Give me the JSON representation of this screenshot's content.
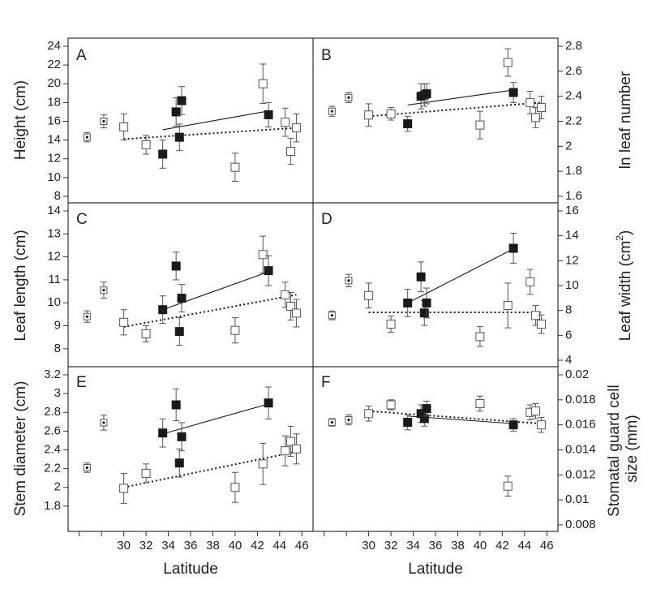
{
  "chart_data": [
    {
      "type": "scatter",
      "panel": "A",
      "ylabel": "Height (cm)",
      "xlabel": "",
      "axis_side": "left",
      "ylim": [
        8,
        24
      ],
      "yticks": [
        8,
        10,
        12,
        14,
        16,
        18,
        20,
        22,
        24
      ],
      "series": [
        {
          "marker": "open",
          "points": [
            {
              "x": 30,
              "y": 15.4,
              "err": 1.4
            },
            {
              "x": 32,
              "y": 13.5,
              "err": 1.0
            },
            {
              "x": 40,
              "y": 11.1,
              "err": 1.5
            },
            {
              "x": 42.5,
              "y": 20.0,
              "err": 2.1
            },
            {
              "x": 44.5,
              "y": 15.9,
              "err": 1.5
            },
            {
              "x": 45,
              "y": 12.8,
              "err": 1.4
            },
            {
              "x": 45.5,
              "y": 15.3,
              "err": 1.5
            }
          ]
        },
        {
          "marker": "filled",
          "points": [
            {
              "x": 33.5,
              "y": 12.5,
              "err": 1.5
            },
            {
              "x": 34.7,
              "y": 17.0,
              "err": 1.5
            },
            {
              "x": 35,
              "y": 14.3,
              "err": 1.4
            },
            {
              "x": 35.2,
              "y": 18.2,
              "err": 1.5
            },
            {
              "x": 43,
              "y": 16.7,
              "err": 1.3
            }
          ]
        },
        {
          "marker": "open-dot",
          "points": [
            {
              "x": 26.7,
              "y": 14.3,
              "err": 0.5
            },
            {
              "x": 28.2,
              "y": 16.0,
              "err": 0.7
            }
          ]
        }
      ],
      "fits": [
        {
          "style": "dotted",
          "x": [
            30,
            45.5
          ],
          "y": [
            14.1,
            15.3
          ]
        },
        {
          "style": "solid",
          "x": [
            33.5,
            43
          ],
          "y": [
            15.1,
            17.1
          ]
        }
      ]
    },
    {
      "type": "scatter",
      "panel": "B",
      "ylabel": "ln leaf number",
      "xlabel": "",
      "axis_side": "right",
      "ylim": [
        1.6,
        2.8
      ],
      "yticks": [
        1.6,
        1.8,
        2.0,
        2.2,
        2.4,
        2.6,
        2.8
      ],
      "series": [
        {
          "marker": "open",
          "points": [
            {
              "x": 30,
              "y": 2.25,
              "err": 0.09
            },
            {
              "x": 32,
              "y": 2.26,
              "err": 0.05
            },
            {
              "x": 40,
              "y": 2.17,
              "err": 0.11
            },
            {
              "x": 42.5,
              "y": 2.67,
              "err": 0.11
            },
            {
              "x": 44.5,
              "y": 2.35,
              "err": 0.09
            },
            {
              "x": 45,
              "y": 2.23,
              "err": 0.08
            },
            {
              "x": 45.5,
              "y": 2.31,
              "err": 0.09
            }
          ]
        },
        {
          "marker": "filled",
          "points": [
            {
              "x": 33.5,
              "y": 2.18,
              "err": 0.06
            },
            {
              "x": 34.7,
              "y": 2.4,
              "err": 0.1
            },
            {
              "x": 35,
              "y": 2.41,
              "err": 0.09
            },
            {
              "x": 35.2,
              "y": 2.42,
              "err": 0.08
            },
            {
              "x": 43,
              "y": 2.43,
              "err": 0.08
            }
          ]
        },
        {
          "marker": "open-dot",
          "points": [
            {
              "x": 26.7,
              "y": 2.28,
              "err": 0.04
            },
            {
              "x": 28.2,
              "y": 2.39,
              "err": 0.04
            }
          ]
        }
      ],
      "fits": [
        {
          "style": "dotted",
          "x": [
            30,
            45.5
          ],
          "y": [
            2.24,
            2.35
          ]
        },
        {
          "style": "solid",
          "x": [
            33.5,
            43
          ],
          "y": [
            2.33,
            2.45
          ]
        }
      ]
    },
    {
      "type": "scatter",
      "panel": "C",
      "ylabel": "Leaf length (cm)",
      "xlabel": "",
      "axis_side": "left",
      "ylim": [
        7.5,
        14
      ],
      "yticks": [
        8,
        9,
        10,
        11,
        12,
        13,
        14
      ],
      "series": [
        {
          "marker": "open",
          "points": [
            {
              "x": 30,
              "y": 9.15,
              "err": 0.55
            },
            {
              "x": 32,
              "y": 8.65,
              "err": 0.35
            },
            {
              "x": 40,
              "y": 8.8,
              "err": 0.55
            },
            {
              "x": 42.5,
              "y": 12.1,
              "err": 0.8
            },
            {
              "x": 44.5,
              "y": 10.35,
              "err": 0.55
            },
            {
              "x": 45,
              "y": 9.85,
              "err": 0.6
            },
            {
              "x": 45.5,
              "y": 9.55,
              "err": 0.6
            }
          ]
        },
        {
          "marker": "filled",
          "points": [
            {
              "x": 33.5,
              "y": 9.7,
              "err": 0.6
            },
            {
              "x": 34.7,
              "y": 11.6,
              "err": 0.6
            },
            {
              "x": 35,
              "y": 8.75,
              "err": 0.6
            },
            {
              "x": 35.2,
              "y": 10.2,
              "err": 0.6
            },
            {
              "x": 43,
              "y": 11.4,
              "err": 0.65
            }
          ]
        },
        {
          "marker": "open-dot",
          "points": [
            {
              "x": 26.7,
              "y": 9.4,
              "err": 0.25
            },
            {
              "x": 28.2,
              "y": 10.55,
              "err": 0.35
            }
          ]
        }
      ],
      "fits": [
        {
          "style": "dotted",
          "x": [
            30,
            45.5
          ],
          "y": [
            8.95,
            10.35
          ]
        },
        {
          "style": "solid",
          "x": [
            33.5,
            43
          ],
          "y": [
            9.7,
            11.35
          ]
        }
      ]
    },
    {
      "type": "scatter",
      "panel": "D",
      "ylabel": "Leaf width (cm²)",
      "xlabel": "",
      "axis_side": "right",
      "ylim": [
        4,
        16
      ],
      "yticks": [
        4,
        6,
        8,
        10,
        12,
        14,
        16
      ],
      "series": [
        {
          "marker": "open",
          "points": [
            {
              "x": 30,
              "y": 9.2,
              "err": 1.0
            },
            {
              "x": 32,
              "y": 6.9,
              "err": 0.65
            },
            {
              "x": 40,
              "y": 5.9,
              "err": 0.8
            },
            {
              "x": 42.5,
              "y": 8.4,
              "err": 1.8
            },
            {
              "x": 44.5,
              "y": 10.3,
              "err": 1.0
            },
            {
              "x": 45,
              "y": 7.6,
              "err": 0.8
            },
            {
              "x": 45.5,
              "y": 6.9,
              "err": 0.75
            }
          ]
        },
        {
          "marker": "filled",
          "points": [
            {
              "x": 33.5,
              "y": 8.6,
              "err": 1.1
            },
            {
              "x": 34.7,
              "y": 10.7,
              "err": 1.2
            },
            {
              "x": 35,
              "y": 7.8,
              "err": 1.0
            },
            {
              "x": 35.2,
              "y": 8.6,
              "err": 1.2
            },
            {
              "x": 43,
              "y": 13.0,
              "err": 1.2
            }
          ]
        },
        {
          "marker": "open-dot",
          "points": [
            {
              "x": 26.7,
              "y": 7.6,
              "err": 0.35
            },
            {
              "x": 28.2,
              "y": 10.4,
              "err": 0.5
            }
          ]
        }
      ],
      "fits": [
        {
          "style": "dotted",
          "x": [
            30,
            45.5
          ],
          "y": [
            7.85,
            7.85
          ]
        },
        {
          "style": "solid",
          "x": [
            33.5,
            43
          ],
          "y": [
            8.6,
            12.95
          ]
        }
      ]
    },
    {
      "type": "scatter",
      "panel": "E",
      "ylabel": "Stem diameter (cm)",
      "xlabel": "Latitude",
      "axis_side": "left",
      "ylim": [
        1.6,
        3.2
      ],
      "yticks": [
        1.8,
        2.0,
        2.2,
        2.4,
        2.6,
        2.8,
        3.0,
        3.2
      ],
      "series": [
        {
          "marker": "open",
          "points": [
            {
              "x": 30,
              "y": 1.99,
              "err": 0.16
            },
            {
              "x": 32,
              "y": 2.15,
              "err": 0.1
            },
            {
              "x": 40,
              "y": 2.0,
              "err": 0.16
            },
            {
              "x": 42.5,
              "y": 2.25,
              "err": 0.22
            },
            {
              "x": 44.5,
              "y": 2.39,
              "err": 0.16
            },
            {
              "x": 45,
              "y": 2.49,
              "err": 0.16
            },
            {
              "x": 45.5,
              "y": 2.41,
              "err": 0.16
            }
          ]
        },
        {
          "marker": "filled",
          "points": [
            {
              "x": 33.5,
              "y": 2.58,
              "err": 0.15
            },
            {
              "x": 34.7,
              "y": 2.88,
              "err": 0.17
            },
            {
              "x": 35,
              "y": 2.26,
              "err": 0.15
            },
            {
              "x": 35.2,
              "y": 2.54,
              "err": 0.15
            },
            {
              "x": 43,
              "y": 2.9,
              "err": 0.17
            }
          ]
        },
        {
          "marker": "open-dot",
          "points": [
            {
              "x": 26.7,
              "y": 2.21,
              "err": 0.05
            },
            {
              "x": 28.2,
              "y": 2.69,
              "err": 0.08
            }
          ]
        }
      ],
      "fits": [
        {
          "style": "dotted",
          "x": [
            30,
            45.5
          ],
          "y": [
            2.0,
            2.38
          ]
        },
        {
          "style": "solid",
          "x": [
            33.5,
            43
          ],
          "y": [
            2.57,
            2.89
          ]
        }
      ]
    },
    {
      "type": "scatter",
      "panel": "F",
      "ylabel": "Stomatal guard cell size (mm)",
      "xlabel": "Latitude",
      "axis_side": "right",
      "ylim": [
        0.008,
        0.02
      ],
      "yticks": [
        0.008,
        0.01,
        0.012,
        0.014,
        0.016,
        0.018,
        0.02
      ],
      "series": [
        {
          "marker": "open",
          "points": [
            {
              "x": 30,
              "y": 0.0169,
              "err": 0.0006
            },
            {
              "x": 32,
              "y": 0.0176,
              "err": 0.0004
            },
            {
              "x": 40,
              "y": 0.0177,
              "err": 0.0006
            },
            {
              "x": 42.5,
              "y": 0.0111,
              "err": 0.0008
            },
            {
              "x": 44.5,
              "y": 0.017,
              "err": 0.0006
            },
            {
              "x": 45,
              "y": 0.0171,
              "err": 0.0006
            },
            {
              "x": 45.5,
              "y": 0.016,
              "err": 0.0006
            }
          ]
        },
        {
          "marker": "filled",
          "points": [
            {
              "x": 33.5,
              "y": 0.0162,
              "err": 0.0006
            },
            {
              "x": 34.7,
              "y": 0.0169,
              "err": 0.0007
            },
            {
              "x": 35,
              "y": 0.0165,
              "err": 0.0006
            },
            {
              "x": 35.2,
              "y": 0.0173,
              "err": 0.0006
            },
            {
              "x": 43,
              "y": 0.016,
              "err": 0.0005
            }
          ]
        },
        {
          "marker": "open-dot",
          "points": [
            {
              "x": 26.7,
              "y": 0.0162,
              "err": 0.0003
            },
            {
              "x": 28.2,
              "y": 0.0164,
              "err": 0.0004
            }
          ]
        }
      ],
      "fits": [
        {
          "style": "dotted",
          "x": [
            30,
            45.5
          ],
          "y": [
            0.0171,
            0.0161
          ]
        },
        {
          "style": "solid",
          "x": [
            33.5,
            43
          ],
          "y": [
            0.0167,
            0.0161
          ]
        }
      ]
    }
  ],
  "shared_x": {
    "label": "Latitude",
    "ticks": [
      30,
      32,
      34,
      36,
      38,
      40,
      42,
      44,
      46
    ],
    "xlim": [
      25,
      47
    ]
  },
  "colors": {
    "axis": "#333333",
    "marker": "#1a1a1a",
    "background": "#ffffff"
  }
}
